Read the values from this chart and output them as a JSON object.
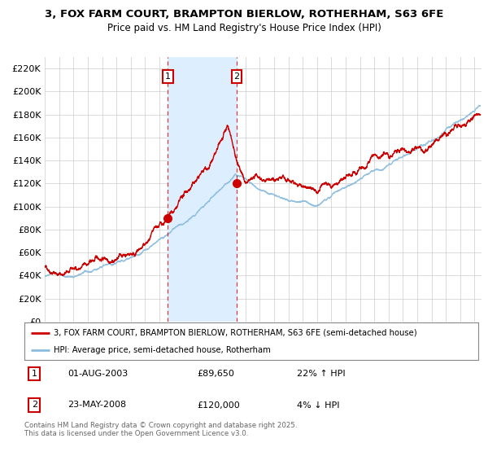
{
  "title1": "3, FOX FARM COURT, BRAMPTON BIERLOW, ROTHERHAM, S63 6FE",
  "title2": "Price paid vs. HM Land Registry's House Price Index (HPI)",
  "legend_red": "3, FOX FARM COURT, BRAMPTON BIERLOW, ROTHERHAM, S63 6FE (semi-detached house)",
  "legend_blue": "HPI: Average price, semi-detached house, Rotherham",
  "annotation1_date": "01-AUG-2003",
  "annotation1_price": "£89,650",
  "annotation1_hpi": "22% ↑ HPI",
  "annotation2_date": "23-MAY-2008",
  "annotation2_price": "£120,000",
  "annotation2_hpi": "4% ↓ HPI",
  "sale1_year": 2003.583,
  "sale1_price": 89650,
  "sale2_year": 2008.388,
  "sale2_price": 120000,
  "copyright": "Contains HM Land Registry data © Crown copyright and database right 2025.\nThis data is licensed under the Open Government Licence v3.0.",
  "ylim": [
    0,
    230000
  ],
  "xlim_start": 1995.0,
  "xlim_end": 2025.5,
  "red_color": "#cc0000",
  "blue_color": "#88bbdd",
  "shade_color": "#ddeeff",
  "bg_color": "#ffffff",
  "grid_color": "#cccccc"
}
